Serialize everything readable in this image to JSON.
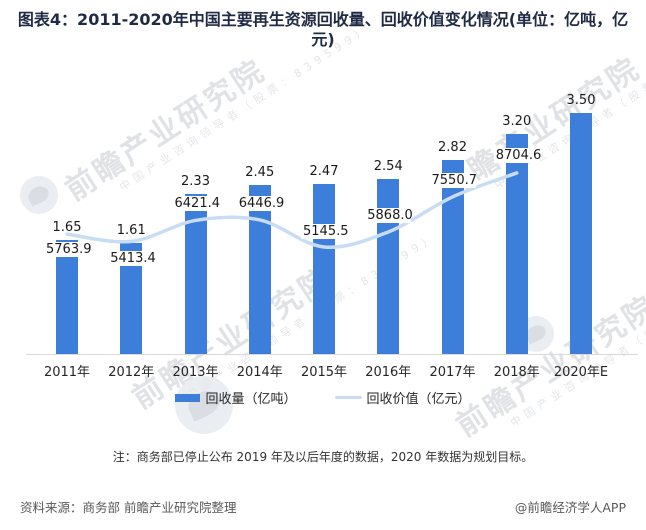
{
  "title": "图表4：2011-2020年中国主要再生资源回收量、回收价值变化情况(单位：亿吨，亿元)",
  "chart_data": {
    "type": "bar",
    "title": "图表4：2011-2020年中国主要再生资源回收量、回收价值变化情况(单位：亿吨，亿元)",
    "categories": [
      "2011年",
      "2012年",
      "2013年",
      "2014年",
      "2015年",
      "2016年",
      "2017年",
      "2018年",
      "2020年E"
    ],
    "series": [
      {
        "name": "回收量（亿吨）",
        "kind": "bar",
        "color": "#3d7edb",
        "values": [
          1.65,
          1.61,
          2.33,
          2.45,
          2.47,
          2.54,
          2.82,
          3.2,
          3.5
        ]
      },
      {
        "name": "回收价值（亿元）",
        "kind": "line",
        "color": "#c8ddf4",
        "values": [
          5763.9,
          5413.4,
          6421.4,
          6446.9,
          5145.5,
          5868.0,
          7550.7,
          8704.6,
          null
        ]
      }
    ],
    "xlabel": "",
    "ylabel": "",
    "ylim_bar": [
      0,
      3.5
    ],
    "ylim_line": [
      0,
      11600
    ],
    "grid": false,
    "legend_position": "bottom"
  },
  "legend": {
    "bar_label": "回收量（亿吨）",
    "line_label": "回收价值（亿元）"
  },
  "note": "注：商务部已停止公布 2019 年及以后年度的数据，2020 年数据为规划目标。",
  "source": "资料来源：商务部 前瞻产业研究院整理",
  "credit": "@前瞻经济学人APP",
  "watermark": {
    "brand": "前瞻产业研究院",
    "tagline": "中国产业咨询领导者（股票：839599）"
  },
  "colors": {
    "bar": "#3d7edb",
    "line": "#c8ddf4",
    "axis": "#d9d9d9",
    "title_text": "#1f2a44"
  }
}
